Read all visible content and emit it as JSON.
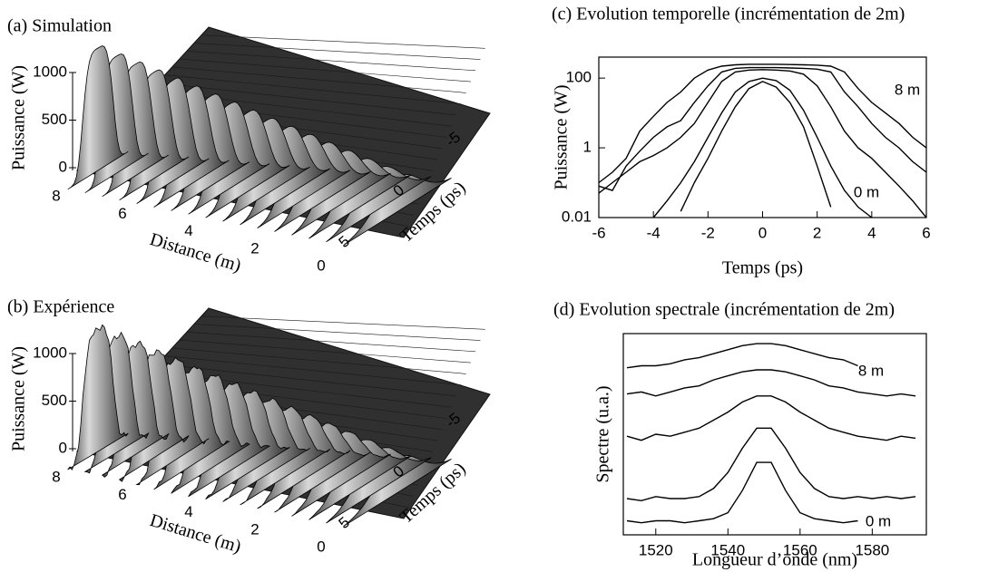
{
  "chart_data": [
    {
      "type": "surface3d",
      "title": "(a) Simulation",
      "zlabel": "Puissance (W)",
      "zticks": [
        0,
        500,
        1000
      ],
      "xlabel": "Distance (m)",
      "xticks": [
        8,
        6,
        4,
        2,
        0
      ],
      "ylabel": "Temps (ps)",
      "yticks": [
        -5,
        0,
        5
      ]
    },
    {
      "type": "surface3d",
      "title": "(b) Expérience",
      "zlabel": "Puissance (W)",
      "zticks": [
        0,
        500,
        1000
      ],
      "xlabel": "Distance (m)",
      "xticks": [
        8,
        6,
        4,
        2,
        0
      ],
      "ylabel": "Temps (ps)",
      "yticks": [
        -5,
        0,
        5
      ]
    },
    {
      "type": "line",
      "title": "(c) Evolution temporelle (incrémentation de 2m)",
      "xlabel": "Temps (ps)",
      "ylabel": "Puissance (W)",
      "yscale": "log",
      "xlim": [
        -6,
        6
      ],
      "ylim": [
        0.01,
        400
      ],
      "xticks": [
        -6,
        -4,
        -2,
        0,
        2,
        4,
        6
      ],
      "yticks": [
        0.01,
        1,
        100
      ],
      "x": [
        -6,
        -5.5,
        -5,
        -4.5,
        -4,
        -3.5,
        -3,
        -2.5,
        -2,
        -1.5,
        -1,
        -0.5,
        0,
        0.5,
        1,
        1.5,
        2,
        2.5,
        3,
        3.5,
        4,
        4.5,
        5,
        5.5,
        6
      ],
      "series": [
        {
          "color": "#000000",
          "values": [
            null,
            null,
            null,
            null,
            null,
            null,
            0.015,
            0.1,
            0.5,
            3,
            15,
            50,
            80,
            55,
            20,
            4,
            0.3,
            0.02,
            null,
            null,
            null,
            null,
            null,
            null,
            null
          ]
        },
        {
          "color": "#000000",
          "values": [
            null,
            null,
            null,
            null,
            0.01,
            0.03,
            0.1,
            0.4,
            2,
            10,
            40,
            80,
            100,
            85,
            45,
            12,
            2,
            0.3,
            0.06,
            0.02,
            0.01,
            null,
            null,
            null,
            null
          ]
        },
        {
          "color": "#000000",
          "values": [
            0.05,
            0.1,
            0.2,
            0.4,
            0.6,
            1,
            2,
            5,
            20,
            80,
            150,
            170,
            175,
            170,
            160,
            130,
            60,
            15,
            3,
            1,
            0.5,
            0.2,
            0.08,
            0.03,
            0.01
          ]
        },
        {
          "color": "#000000",
          "values": [
            0.08,
            0.06,
            0.3,
            0.8,
            2,
            4,
            6,
            20,
            60,
            150,
            190,
            200,
            200,
            200,
            195,
            190,
            180,
            150,
            40,
            15,
            5,
            2,
            1,
            0.4,
            0.2
          ]
        },
        {
          "color": "#000000",
          "values": [
            0.1,
            0.2,
            0.5,
            3,
            8,
            20,
            40,
            100,
            170,
            220,
            240,
            250,
            250,
            250,
            245,
            240,
            235,
            220,
            150,
            50,
            20,
            10,
            5,
            2,
            1
          ]
        }
      ],
      "annotations": [
        "8 m",
        "0 m"
      ]
    },
    {
      "type": "line",
      "title": "(d) Evolution spectrale (incrémentation de 2m)",
      "xlabel": "Longueur d’onde (nm)",
      "ylabel": "Spectre (u.a.)",
      "xlim": [
        1511,
        1595
      ],
      "ylim": [
        0,
        10
      ],
      "xticks": [
        1520,
        1540,
        1560,
        1580
      ],
      "x": [
        1512,
        1516,
        1520,
        1524,
        1528,
        1532,
        1536,
        1540,
        1544,
        1548,
        1552,
        1556,
        1560,
        1564,
        1568,
        1572,
        1576,
        1580,
        1584,
        1588,
        1592
      ],
      "series": [
        {
          "color": "#000000",
          "values": [
            0.7,
            0.6,
            0.7,
            0.7,
            0.6,
            0.7,
            0.8,
            1.1,
            2.2,
            3.6,
            3.6,
            2.2,
            1.1,
            0.8,
            0.7,
            0.6,
            0.7,
            null,
            null,
            null,
            null
          ]
        },
        {
          "color": "#000000",
          "values": [
            1.8,
            1.7,
            1.9,
            1.8,
            1.8,
            1.9,
            2.3,
            3.1,
            4.3,
            5.3,
            5.3,
            4.3,
            3.1,
            2.3,
            1.9,
            1.8,
            1.9,
            1.8,
            1.9,
            1.8,
            1.9
          ]
        },
        {
          "color": "#000000",
          "values": [
            4.9,
            4.7,
            5.0,
            4.9,
            5.1,
            5.3,
            5.7,
            6.1,
            6.6,
            6.9,
            6.9,
            6.6,
            6.1,
            5.7,
            5.3,
            5.1,
            4.9,
            4.8,
            4.7,
            4.9,
            4.8
          ]
        },
        {
          "color": "#000000",
          "values": [
            7.0,
            7.1,
            6.9,
            7.1,
            7.3,
            7.4,
            7.7,
            7.9,
            8.1,
            8.2,
            8.2,
            8.1,
            7.9,
            7.7,
            7.4,
            7.3,
            7.1,
            7.0,
            6.9,
            7.0,
            6.9
          ]
        },
        {
          "color": "#000000",
          "values": [
            8.3,
            8.4,
            8.4,
            8.5,
            8.7,
            8.8,
            9.0,
            9.2,
            9.4,
            9.5,
            9.5,
            9.4,
            9.2,
            9.0,
            8.8,
            8.7,
            8.4,
            null,
            null,
            null,
            null
          ]
        }
      ],
      "annotations": [
        "8 m",
        "0 m"
      ]
    }
  ]
}
